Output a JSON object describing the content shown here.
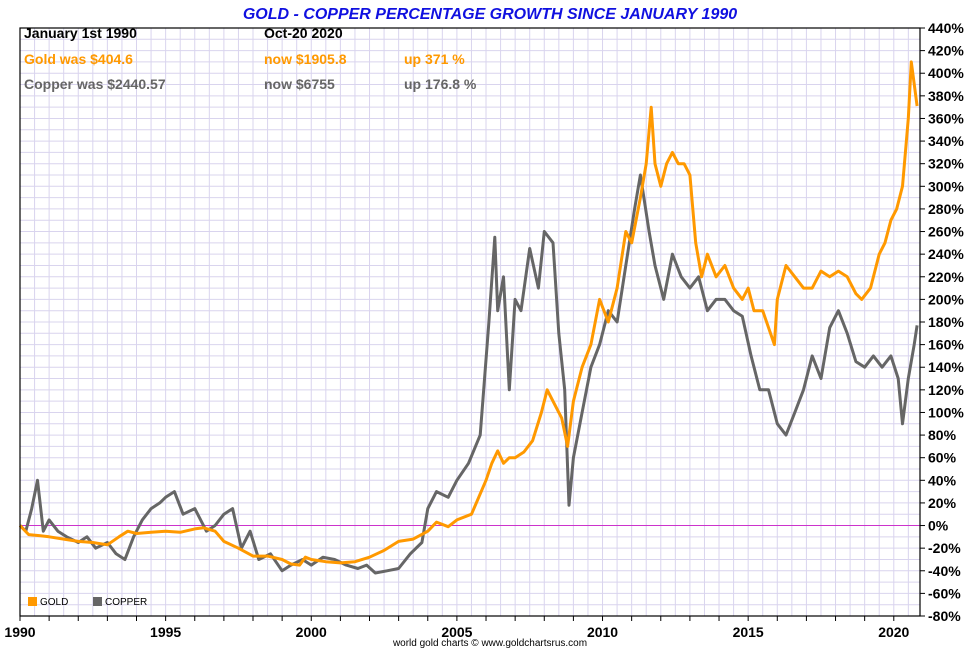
{
  "colors": {
    "gold": "#FF9900",
    "copper": "#666666",
    "zero_line": "#CC33CC",
    "grid": "#D9D4EE",
    "title": "#1010E0",
    "frame": "#000000"
  },
  "chart_data": {
    "type": "line",
    "title": "GOLD - COPPER PERCENTAGE GROWTH SINCE JANUARY 1990",
    "xlabel": "",
    "ylabel": "",
    "xlim": [
      1990.0,
      2020.9
    ],
    "ylim": [
      -80,
      440
    ],
    "grid": true,
    "legend_position": "bottom-left",
    "x_ticks": [
      {
        "value": 1990,
        "label": "1990"
      },
      {
        "value": 1995,
        "label": "1995"
      },
      {
        "value": 2000,
        "label": "2000"
      },
      {
        "value": 2005,
        "label": "2005"
      },
      {
        "value": 2010,
        "label": "2010"
      },
      {
        "value": 2015,
        "label": "2015"
      },
      {
        "value": 2020,
        "label": "2020"
      }
    ],
    "y_ticks": [
      {
        "value": 440,
        "label": "440%"
      },
      {
        "value": 420,
        "label": "420%"
      },
      {
        "value": 400,
        "label": "400%"
      },
      {
        "value": 380,
        "label": "380%"
      },
      {
        "value": 360,
        "label": "360%"
      },
      {
        "value": 340,
        "label": "340%"
      },
      {
        "value": 320,
        "label": "320%"
      },
      {
        "value": 300,
        "label": "300%"
      },
      {
        "value": 280,
        "label": "280%"
      },
      {
        "value": 260,
        "label": "260%"
      },
      {
        "value": 240,
        "label": "240%"
      },
      {
        "value": 220,
        "label": "220%"
      },
      {
        "value": 200,
        "label": "200%"
      },
      {
        "value": 180,
        "label": "180%"
      },
      {
        "value": 160,
        "label": "160%"
      },
      {
        "value": 140,
        "label": "140%"
      },
      {
        "value": 120,
        "label": "120%"
      },
      {
        "value": 100,
        "label": "100%"
      },
      {
        "value": 80,
        "label": "80%"
      },
      {
        "value": 60,
        "label": "60%"
      },
      {
        "value": 40,
        "label": "40%"
      },
      {
        "value": 20,
        "label": "20%"
      },
      {
        "value": 0,
        "label": "0%"
      },
      {
        "value": -20,
        "label": "-20%"
      },
      {
        "value": -40,
        "label": "-40%"
      },
      {
        "value": -60,
        "label": "-60%"
      },
      {
        "value": -80,
        "label": "-80%"
      }
    ],
    "info": {
      "row1": {
        "label": "January 1st 1990",
        "date": "Oct-20  2020"
      },
      "gold": {
        "was": "Gold was $404.6",
        "now": "now $1905.8",
        "change": "up 371 %"
      },
      "copper": {
        "was": "Copper was $2440.57",
        "now": "now $6755",
        "change": "up 176.8 %"
      }
    },
    "credit": "world gold charts © www.goldchartsrus.com",
    "series": [
      {
        "name": "GOLD",
        "x": [
          1990.0,
          1990.3,
          1990.7,
          1991.0,
          1991.5,
          1992.0,
          1992.5,
          1993.0,
          1993.4,
          1993.7,
          1994.0,
          1994.5,
          1995.0,
          1995.5,
          1996.0,
          1996.3,
          1996.7,
          1997.0,
          1997.5,
          1998.0,
          1998.5,
          1999.0,
          1999.3,
          1999.6,
          1999.8,
          2000.0,
          2000.5,
          2001.0,
          2001.5,
          2002.0,
          2002.5,
          2003.0,
          2003.5,
          2004.0,
          2004.3,
          2004.7,
          2005.0,
          2005.5,
          2006.0,
          2006.2,
          2006.4,
          2006.6,
          2006.8,
          2007.0,
          2007.3,
          2007.6,
          2007.9,
          2008.1,
          2008.3,
          2008.6,
          2008.8,
          2009.0,
          2009.3,
          2009.6,
          2009.9,
          2010.2,
          2010.5,
          2010.8,
          2011.0,
          2011.3,
          2011.5,
          2011.67,
          2011.8,
          2012.0,
          2012.2,
          2012.4,
          2012.6,
          2012.8,
          2013.0,
          2013.2,
          2013.4,
          2013.6,
          2013.9,
          2014.2,
          2014.5,
          2014.8,
          2015.0,
          2015.2,
          2015.5,
          2015.9,
          2016.0,
          2016.3,
          2016.6,
          2016.9,
          2017.2,
          2017.5,
          2017.8,
          2018.1,
          2018.4,
          2018.7,
          2018.9,
          2019.2,
          2019.5,
          2019.7,
          2019.9,
          2020.1,
          2020.3,
          2020.5,
          2020.6,
          2020.8
        ],
        "values": [
          0,
          -8,
          -9,
          -10,
          -12,
          -14,
          -15,
          -17,
          -10,
          -5,
          -7,
          -6,
          -5,
          -6,
          -3,
          -2,
          -5,
          -14,
          -20,
          -27,
          -27,
          -30,
          -34,
          -35,
          -28,
          -30,
          -32,
          -33,
          -32,
          -28,
          -22,
          -14,
          -12,
          -5,
          3,
          -1,
          5,
          10,
          40,
          55,
          66,
          55,
          60,
          60,
          65,
          75,
          100,
          120,
          110,
          95,
          70,
          110,
          140,
          160,
          200,
          180,
          210,
          260,
          250,
          290,
          320,
          370,
          320,
          300,
          320,
          330,
          320,
          320,
          310,
          250,
          220,
          240,
          220,
          230,
          210,
          200,
          210,
          190,
          190,
          160,
          200,
          230,
          220,
          210,
          210,
          225,
          220,
          225,
          220,
          205,
          200,
          210,
          240,
          250,
          270,
          280,
          300,
          360,
          410,
          371
        ]
      },
      {
        "name": "COPPER",
        "x": [
          1990.0,
          1990.2,
          1990.4,
          1990.6,
          1990.8,
          1991.0,
          1991.3,
          1991.6,
          1992.0,
          1992.3,
          1992.6,
          1993.0,
          1993.3,
          1993.6,
          1993.9,
          1994.2,
          1994.5,
          1994.8,
          1995.0,
          1995.3,
          1995.6,
          1996.0,
          1996.4,
          1996.7,
          1997.0,
          1997.3,
          1997.6,
          1997.9,
          1998.2,
          1998.6,
          1999.0,
          1999.3,
          1999.7,
          2000.0,
          2000.4,
          2000.8,
          2001.2,
          2001.6,
          2001.9,
          2002.2,
          2002.6,
          2003.0,
          2003.4,
          2003.8,
          2004.0,
          2004.3,
          2004.7,
          2005.0,
          2005.4,
          2005.8,
          2006.1,
          2006.3,
          2006.4,
          2006.6,
          2006.8,
          2007.0,
          2007.2,
          2007.5,
          2007.8,
          2008.0,
          2008.3,
          2008.5,
          2008.7,
          2008.85,
          2009.0,
          2009.3,
          2009.6,
          2009.9,
          2010.2,
          2010.5,
          2010.8,
          2011.1,
          2011.3,
          2011.6,
          2011.8,
          2012.1,
          2012.4,
          2012.7,
          2013.0,
          2013.3,
          2013.6,
          2013.9,
          2014.2,
          2014.5,
          2014.8,
          2015.1,
          2015.4,
          2015.7,
          2016.0,
          2016.3,
          2016.6,
          2016.9,
          2017.2,
          2017.5,
          2017.8,
          2018.1,
          2018.4,
          2018.7,
          2019.0,
          2019.3,
          2019.6,
          2019.9,
          2020.15,
          2020.3,
          2020.5,
          2020.7,
          2020.8
        ],
        "values": [
          0,
          -5,
          15,
          40,
          -5,
          5,
          -5,
          -10,
          -15,
          -10,
          -20,
          -15,
          -25,
          -30,
          -10,
          5,
          15,
          20,
          25,
          30,
          10,
          15,
          -5,
          0,
          10,
          15,
          -20,
          -5,
          -30,
          -25,
          -40,
          -35,
          -30,
          -35,
          -28,
          -30,
          -35,
          -38,
          -35,
          -42,
          -40,
          -38,
          -25,
          -15,
          15,
          30,
          25,
          40,
          55,
          80,
          180,
          255,
          190,
          220,
          120,
          200,
          190,
          245,
          210,
          260,
          250,
          170,
          120,
          18,
          60,
          100,
          140,
          160,
          190,
          180,
          230,
          280,
          310,
          260,
          230,
          200,
          240,
          220,
          210,
          220,
          190,
          200,
          200,
          190,
          185,
          150,
          120,
          120,
          90,
          80,
          100,
          120,
          150,
          130,
          175,
          190,
          170,
          145,
          140,
          150,
          140,
          150,
          130,
          90,
          130,
          160,
          177
        ]
      }
    ]
  }
}
